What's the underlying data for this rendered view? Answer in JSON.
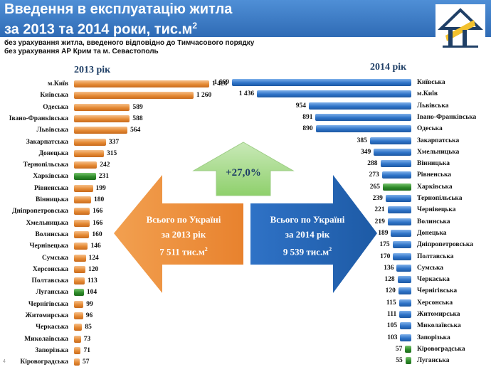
{
  "header": {
    "title_line1": "Введення в експлуатацію житла",
    "title_line2": "за 2013 та 2014 роки, тис.м",
    "title_sup": "2",
    "note1": "без урахування житла, введеного відповідно до Тимчасового порядку",
    "note2": "без урахування  АР Крим та м. Севастополь"
  },
  "colors": {
    "y2013": "#e58a35",
    "y2014": "#2f74c8",
    "highlight": "#2e8b2a",
    "header": "#3f7cc6"
  },
  "summary": {
    "left_line1": "Всього по Україні",
    "left_line2": "за 2013 рік",
    "left_value": "7 511 тис.м",
    "left_sup": "2",
    "right_line1": "Всього по Україні",
    "right_line2": "за 2014 рік",
    "right_value": "9 539 тис.м",
    "right_sup": "2",
    "growth": "+27,0%"
  },
  "chart_data": [
    {
      "type": "bar",
      "title": "2013 рік",
      "highlight": [
        "Харківська",
        "Луганська"
      ],
      "categories": [
        "м.Київ",
        "Київська",
        "Одеська",
        "Івано-Франківська",
        "Львівська",
        "Закарпатська",
        "Донецька",
        "Тернопільська",
        "Харківська",
        "Рівненська",
        "Вінницька",
        "Дніпропетровська",
        "Хмельницька",
        "Волинська",
        "Чернівецька",
        "Сумська",
        "Херсонська",
        "Полтавська",
        "Луганська",
        "Чернігівська",
        "Житомирська",
        "Черкаська",
        "Миколаївська",
        "Запорізька",
        "Кіровоградська"
      ],
      "labels": [
        "1 426",
        "1 260",
        "589",
        "588",
        "564",
        "337",
        "315",
        "242",
        "231",
        "199",
        "180",
        "166",
        "166",
        "160",
        "146",
        "124",
        "120",
        "113",
        "104",
        "99",
        "96",
        "85",
        "73",
        "71",
        "57"
      ],
      "values": [
        1426,
        1260,
        589,
        588,
        564,
        337,
        315,
        242,
        231,
        199,
        180,
        166,
        166,
        160,
        146,
        124,
        120,
        113,
        104,
        99,
        96,
        85,
        73,
        71,
        57
      ]
    },
    {
      "type": "bar",
      "title": "2014 рік",
      "highlight": [
        "Харківська",
        "Кіровоградська",
        "Луганська"
      ],
      "categories": [
        "Київська",
        "м.Київ",
        "Львівська",
        "Івано-Франківська",
        "Одеська",
        "Закарпатська",
        "Хмельницька",
        "Вінницька",
        "Рівненська",
        "Харківська",
        "Тернопільська",
        "Чернівецька",
        "Волинська",
        "Донецька",
        "Дніпропетровська",
        "Полтавська",
        "Сумська",
        "Черкаська",
        "Чернігівська",
        "Херсонська",
        "Житомирська",
        "Миколаївська",
        "Запорізька",
        "Кіровоградська",
        "Луганська"
      ],
      "labels": [
        "1 669",
        "1 436",
        "954",
        "891",
        "890",
        "385",
        "349",
        "288",
        "273",
        "265",
        "239",
        "221",
        "219",
        "189",
        "175",
        "170",
        "136",
        "128",
        "120",
        "115",
        "111",
        "105",
        "103",
        "57",
        "55"
      ],
      "values": [
        1669,
        1436,
        954,
        891,
        890,
        385,
        349,
        288,
        273,
        265,
        239,
        221,
        219,
        189,
        175,
        170,
        136,
        128,
        120,
        115,
        111,
        105,
        103,
        57,
        55
      ]
    }
  ]
}
